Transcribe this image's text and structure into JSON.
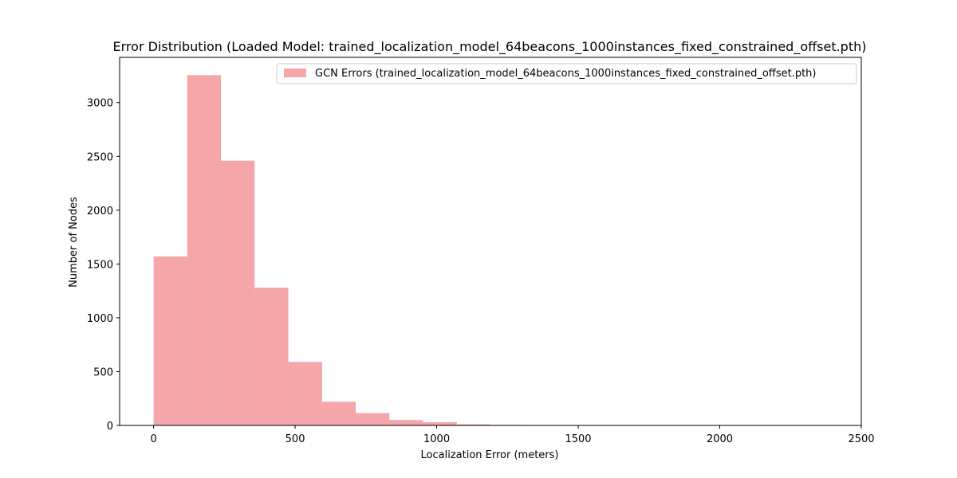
{
  "chart_data": {
    "type": "bar",
    "title": "Error Distribution (Loaded Model: trained_localization_model_64beacons_1000instances_fixed_constrained_offset.pth)",
    "xlabel": "Localization Error (meters)",
    "ylabel": "Number of Nodes",
    "xlim": [
      -120,
      2500
    ],
    "ylim": [
      0,
      3420
    ],
    "xticks": [
      0,
      500,
      1000,
      1500,
      2000,
      2500
    ],
    "yticks": [
      0,
      500,
      1000,
      1500,
      2000,
      2500,
      3000
    ],
    "grid": false,
    "legend_position": "top-right",
    "bin_edges": [
      0,
      119,
      238,
      357,
      476,
      595,
      714,
      833,
      952,
      1071,
      1190,
      1309,
      1428,
      1547,
      1666,
      1785,
      1904,
      2023,
      2142,
      2261,
      2380
    ],
    "series": [
      {
        "name": "GCN Errors (trained_localization_model_64beacons_1000instances_fixed_constrained_offset.pth)",
        "color": "#f4a6a8",
        "values": [
          1570,
          3255,
          2460,
          1280,
          590,
          220,
          115,
          50,
          30,
          10,
          5,
          3,
          2,
          1,
          1,
          0,
          0,
          0,
          0,
          1
        ]
      }
    ]
  }
}
